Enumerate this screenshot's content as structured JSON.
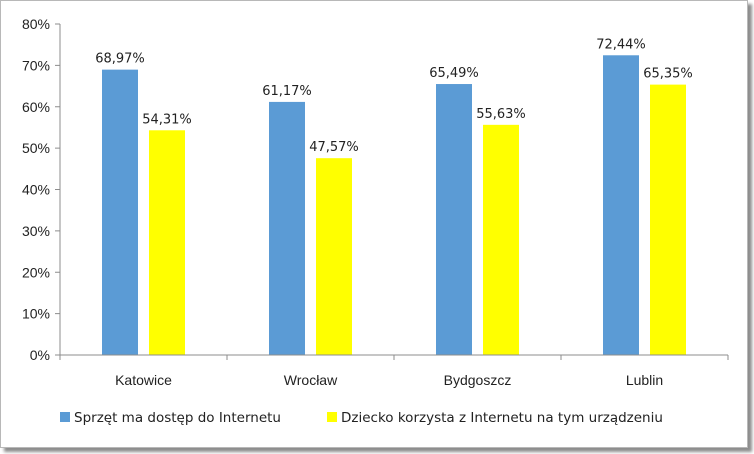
{
  "chart_data": {
    "type": "bar",
    "categories": [
      "Katowice",
      "Wrocław",
      "Bydgoszcz",
      "Lublin"
    ],
    "series": [
      {
        "name": "Sprzęt ma dostęp do Internetu",
        "values": [
          68.97,
          61.17,
          65.49,
          72.44
        ],
        "labels": [
          "68,97%",
          "61,17%",
          "65,49%",
          "72,44%"
        ],
        "color": "#5b9bd5"
      },
      {
        "name": "Dziecko korzysta z Internetu na tym urządzeniu",
        "values": [
          54.31,
          47.57,
          55.63,
          65.35
        ],
        "labels": [
          "54,31%",
          "47,57%",
          "55,63%",
          "65,35%"
        ],
        "color": "#ffff00"
      }
    ],
    "y_ticks": [
      "0%",
      "10%",
      "20%",
      "30%",
      "40%",
      "50%",
      "60%",
      "70%",
      "80%"
    ],
    "ylim": [
      0,
      80
    ],
    "grid": false,
    "legend_position": "bottom"
  }
}
